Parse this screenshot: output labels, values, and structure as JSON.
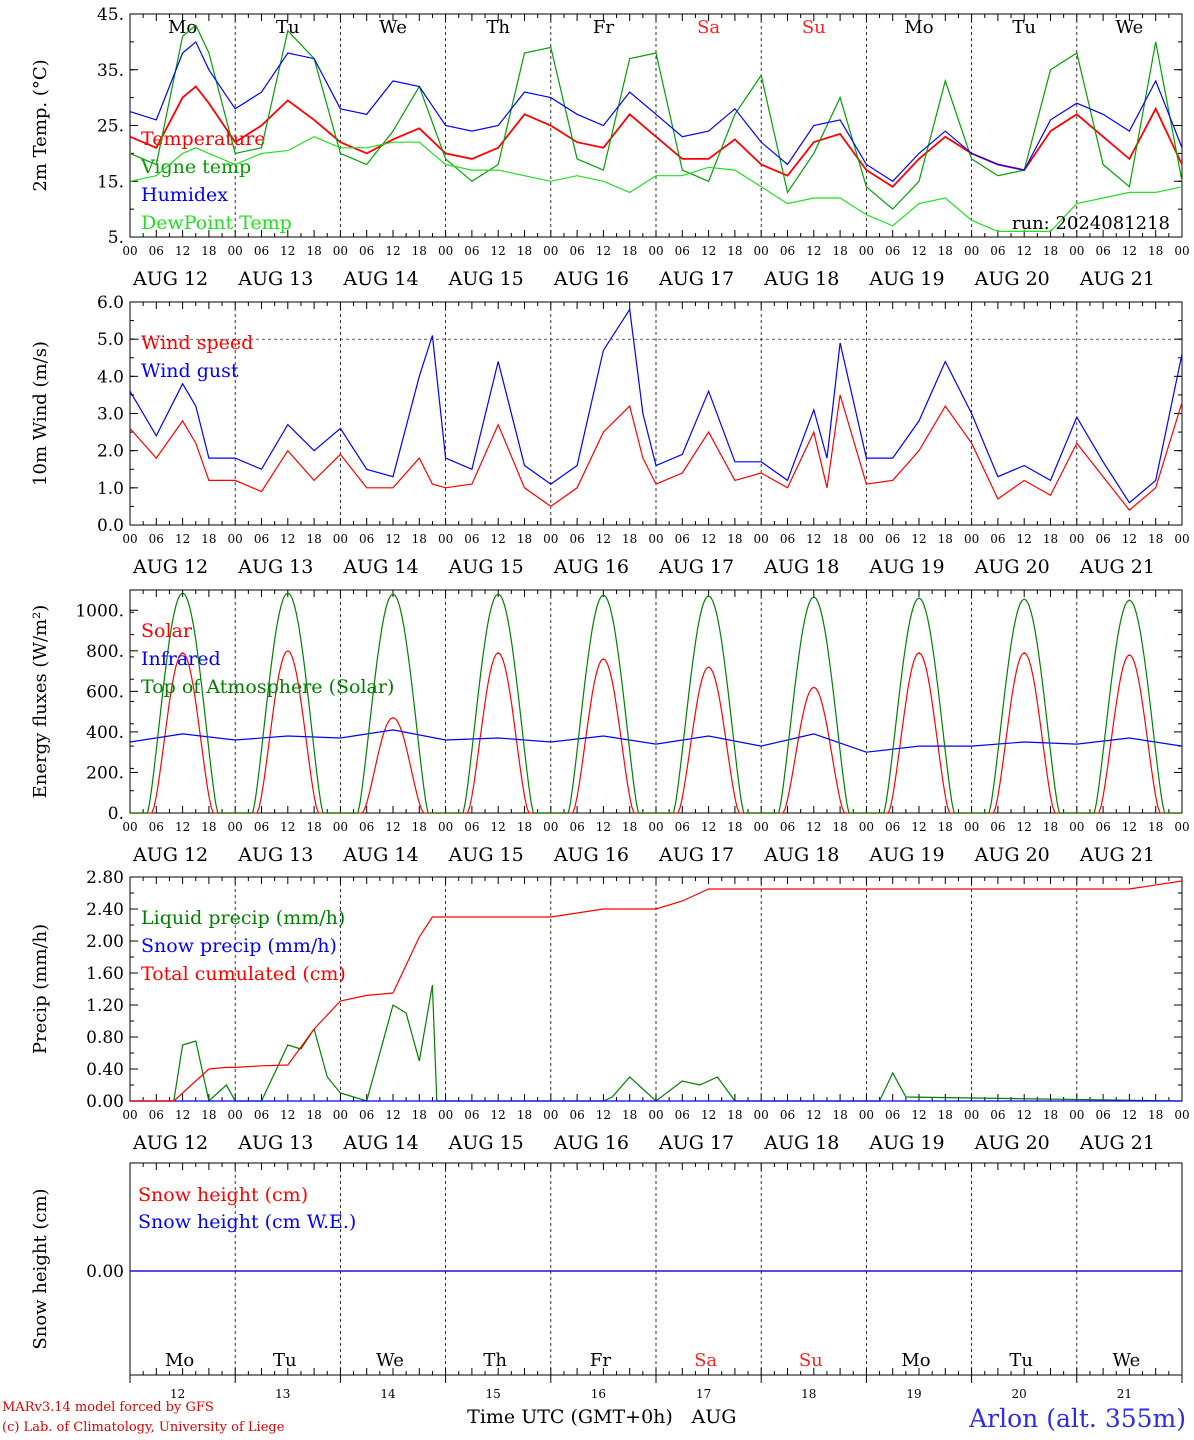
{
  "days": [
    "AUG 12",
    "AUG 13",
    "AUG 14",
    "AUG 15",
    "AUG 16",
    "AUG 17",
    "AUG 18",
    "AUG 19",
    "AUG 20",
    "AUG 21"
  ],
  "weekdays": [
    "Mo",
    "Tu",
    "We",
    "Th",
    "Fr",
    "Sa",
    "Su",
    "Mo",
    "Tu",
    "We"
  ],
  "weekend_color": "#ff2020",
  "hour_ticks": [
    "00",
    "06",
    "12",
    "18"
  ],
  "hour_end_tick": "00",
  "day_numbers": [
    "12",
    "13",
    "14",
    "15",
    "16",
    "17",
    "18",
    "19",
    "20",
    "21"
  ],
  "footer": {
    "xlabel": "Time UTC (GMT+0h)",
    "month": "AUG",
    "credit1": "MARv3.14 model forced by GFS",
    "credit2": "(c) Lab. of Climatology, University of Liege",
    "station": "Arlon (alt. 355m)"
  },
  "chart_data": [
    {
      "type": "line",
      "ylabel": "2m Temp. (°C)",
      "ylim": [
        5,
        45
      ],
      "yticks": [
        "5.",
        "15.",
        "25.",
        "35.",
        "45."
      ],
      "annotation": "run: 2024081218",
      "series": [
        {
          "name": "Temperature",
          "color": "#ff0000",
          "x": [
            0,
            6,
            12,
            15,
            18,
            24,
            30,
            36,
            42,
            48,
            54,
            60,
            66,
            72,
            78,
            84,
            90,
            96,
            102,
            108,
            114,
            120,
            126,
            132,
            138,
            144,
            150,
            156,
            162,
            168,
            174,
            180,
            186,
            192,
            198,
            204,
            210,
            216,
            222,
            228,
            234,
            240
          ],
          "values": [
            23,
            21,
            30,
            32,
            29,
            22,
            25,
            29.5,
            26,
            22,
            20,
            22.5,
            24.5,
            20,
            19,
            21,
            27,
            25,
            22,
            21,
            27,
            23,
            19,
            19,
            22.5,
            18,
            16,
            22,
            23.5,
            17,
            14,
            19,
            23,
            20,
            18,
            17,
            24,
            27,
            23,
            19,
            28,
            18
          ]
        },
        {
          "name": "Vigne temp",
          "color": "#00a000",
          "x": [
            0,
            6,
            12,
            15,
            18,
            24,
            30,
            36,
            42,
            48,
            54,
            60,
            66,
            72,
            78,
            84,
            90,
            96,
            102,
            108,
            114,
            120,
            126,
            132,
            138,
            144,
            150,
            156,
            162,
            168,
            174,
            180,
            186,
            192,
            198,
            204,
            210,
            216,
            222,
            228,
            234,
            240
          ],
          "values": [
            20,
            18,
            41,
            43,
            38,
            20,
            21,
            42,
            37,
            20,
            18,
            24,
            32,
            19,
            15,
            18,
            38,
            39,
            19,
            17,
            37,
            38,
            17,
            15,
            27,
            34,
            13,
            20,
            30,
            14,
            10,
            15,
            33,
            19,
            16,
            17,
            35,
            38,
            18,
            14,
            40,
            15
          ]
        },
        {
          "name": "Humidex",
          "color": "#0000ff",
          "x": [
            0,
            6,
            12,
            15,
            18,
            24,
            30,
            36,
            42,
            48,
            54,
            60,
            66,
            72,
            78,
            84,
            90,
            96,
            102,
            108,
            114,
            120,
            126,
            132,
            138,
            144,
            150,
            156,
            162,
            168,
            174,
            180,
            186,
            192,
            198,
            204,
            210,
            216,
            222,
            228,
            234,
            240
          ],
          "values": [
            27.5,
            26,
            38,
            40,
            35,
            28,
            31,
            38,
            37,
            28,
            27,
            33,
            32,
            25,
            24,
            25,
            31,
            30,
            27,
            25,
            31,
            27,
            23,
            24,
            28,
            22,
            18,
            25,
            26,
            18,
            15,
            20,
            24,
            20,
            18,
            17,
            26,
            29,
            27,
            24,
            33,
            21
          ]
        },
        {
          "name": "DewPoint Temp",
          "color": "#20e020",
          "x": [
            0,
            6,
            12,
            15,
            18,
            24,
            30,
            36,
            42,
            48,
            54,
            60,
            66,
            72,
            78,
            84,
            90,
            96,
            102,
            108,
            114,
            120,
            126,
            132,
            138,
            144,
            150,
            156,
            162,
            168,
            174,
            180,
            186,
            192,
            198,
            204,
            210,
            216,
            222,
            228,
            234,
            240
          ],
          "values": [
            15,
            16,
            20,
            21,
            20,
            18,
            20,
            20.5,
            23,
            21,
            21,
            22,
            22,
            18,
            17,
            17,
            16,
            15,
            16,
            15,
            13,
            16,
            16,
            17.5,
            17,
            14,
            11,
            12,
            12,
            9,
            7,
            11,
            12,
            8,
            6,
            6,
            6,
            11,
            12,
            13,
            13,
            14
          ]
        }
      ]
    },
    {
      "type": "line",
      "ylabel": "10m Wind (m/s)",
      "ylim": [
        0,
        6
      ],
      "yticks": [
        "0.0",
        "1.0",
        "2.0",
        "3.0",
        "4.0",
        "5.0",
        "6.0"
      ],
      "refline": 5.0,
      "series": [
        {
          "name": "Wind speed",
          "color": "#ff0000",
          "x": [
            0,
            6,
            12,
            15,
            18,
            24,
            30,
            36,
            42,
            48,
            54,
            60,
            66,
            69,
            72,
            78,
            84,
            90,
            96,
            102,
            108,
            114,
            117,
            120,
            126,
            132,
            138,
            144,
            150,
            156,
            159,
            162,
            168,
            174,
            180,
            186,
            192,
            198,
            204,
            210,
            216,
            222,
            228,
            234,
            240
          ],
          "values": [
            2.6,
            1.8,
            2.8,
            2.2,
            1.2,
            1.2,
            0.9,
            2.0,
            1.2,
            1.9,
            1.0,
            1.0,
            1.8,
            1.1,
            1.0,
            1.1,
            2.7,
            1.0,
            0.5,
            1.0,
            2.5,
            3.2,
            1.8,
            1.1,
            1.4,
            2.5,
            1.2,
            1.4,
            1.0,
            2.5,
            1.0,
            3.5,
            1.1,
            1.2,
            2.0,
            3.2,
            2.2,
            0.7,
            1.2,
            0.8,
            2.2,
            1.3,
            0.4,
            1.0,
            3.3
          ]
        },
        {
          "name": "Wind gust",
          "color": "#0000ff",
          "x": [
            0,
            6,
            12,
            15,
            18,
            24,
            30,
            36,
            42,
            48,
            54,
            60,
            66,
            69,
            72,
            78,
            84,
            90,
            96,
            102,
            108,
            114,
            117,
            120,
            126,
            132,
            138,
            144,
            150,
            156,
            159,
            162,
            168,
            174,
            180,
            186,
            192,
            198,
            204,
            210,
            216,
            222,
            228,
            234,
            240
          ],
          "values": [
            3.6,
            2.4,
            3.8,
            3.2,
            1.8,
            1.8,
            1.5,
            2.7,
            2.0,
            2.6,
            1.5,
            1.3,
            4.0,
            5.1,
            1.8,
            1.5,
            4.4,
            1.6,
            1.1,
            1.6,
            4.7,
            5.8,
            3.0,
            1.6,
            1.9,
            3.6,
            1.7,
            1.7,
            1.2,
            3.1,
            1.8,
            4.9,
            1.8,
            1.8,
            2.8,
            4.4,
            3.0,
            1.3,
            1.6,
            1.2,
            2.9,
            1.7,
            0.6,
            1.2,
            4.6
          ]
        }
      ]
    },
    {
      "type": "line",
      "ylabel": "Energy fluxes (W/m²)",
      "ylim": [
        0,
        1100
      ],
      "yticks": [
        "0.",
        "200.",
        "400.",
        "600.",
        "800.",
        "1000."
      ],
      "series": [
        {
          "name": "Solar",
          "color": "#ff0000",
          "peaks": [
            790,
            800,
            470,
            790,
            760,
            720,
            620,
            790,
            790,
            780
          ]
        },
        {
          "name": "Infrared",
          "color": "#0000ff",
          "x": [
            0,
            12,
            24,
            36,
            48,
            60,
            72,
            84,
            96,
            108,
            120,
            132,
            144,
            156,
            168,
            180,
            192,
            204,
            216,
            228,
            240
          ],
          "values": [
            350,
            390,
            360,
            380,
            370,
            410,
            360,
            370,
            350,
            380,
            340,
            380,
            330,
            390,
            300,
            330,
            330,
            350,
            340,
            370,
            330
          ]
        },
        {
          "name": "Top of Atmosphere (Solar)",
          "color": "#008000",
          "peaks": [
            1085,
            1085,
            1080,
            1080,
            1075,
            1070,
            1065,
            1060,
            1055,
            1050
          ]
        }
      ]
    },
    {
      "type": "line",
      "ylabel": "Precip (mm/h)",
      "ylim": [
        0,
        2.8
      ],
      "yticks": [
        "0.00",
        "0.40",
        "0.80",
        "1.20",
        "1.60",
        "2.00",
        "2.40",
        "2.80"
      ],
      "series": [
        {
          "name": "Liquid precip (mm/h)",
          "color": "#008000",
          "x": [
            0,
            10,
            12,
            15,
            18,
            22,
            24,
            30,
            36,
            39,
            42,
            45,
            48,
            54,
            60,
            63,
            66,
            69,
            70,
            72,
            96,
            108,
            110,
            114,
            120,
            126,
            130,
            134,
            138,
            144,
            162,
            171,
            174,
            177,
            240
          ],
          "values": [
            0,
            0,
            0.7,
            0.75,
            0,
            0.2,
            0,
            0,
            0.7,
            0.65,
            0.9,
            0.3,
            0.1,
            0,
            1.2,
            1.1,
            0.5,
            1.45,
            0,
            0,
            0,
            0,
            0.05,
            0.3,
            0,
            0.25,
            0.2,
            0.3,
            0,
            0,
            0,
            0,
            0.35,
            0.05,
            0
          ]
        },
        {
          "name": "Snow precip (mm/h)",
          "color": "#0000ff",
          "x": [
            0,
            240
          ],
          "values": [
            0,
            0
          ]
        },
        {
          "name": "Total cumulated (cm)",
          "color": "#ff0000",
          "x": [
            0,
            10,
            18,
            22,
            24,
            30,
            36,
            42,
            48,
            54,
            60,
            66,
            69,
            72,
            96,
            108,
            120,
            126,
            132,
            144,
            228,
            240
          ],
          "values": [
            0,
            0,
            0.4,
            0.42,
            0.42,
            0.44,
            0.45,
            0.9,
            1.25,
            1.32,
            1.35,
            2.05,
            2.3,
            2.3,
            2.3,
            2.4,
            2.4,
            2.5,
            2.65,
            2.65,
            2.65,
            2.75
          ]
        }
      ]
    },
    {
      "type": "line",
      "ylabel": "Snow height (cm)",
      "yticks": [
        "0.00"
      ],
      "series": [
        {
          "name": "Snow height (cm)",
          "color": "#ff0000",
          "x": [
            0,
            240
          ],
          "values": [
            0,
            0
          ]
        },
        {
          "name": "Snow height (cm W.E.)",
          "color": "#0000ff",
          "x": [
            0,
            240
          ],
          "values": [
            0,
            0
          ]
        }
      ]
    }
  ]
}
